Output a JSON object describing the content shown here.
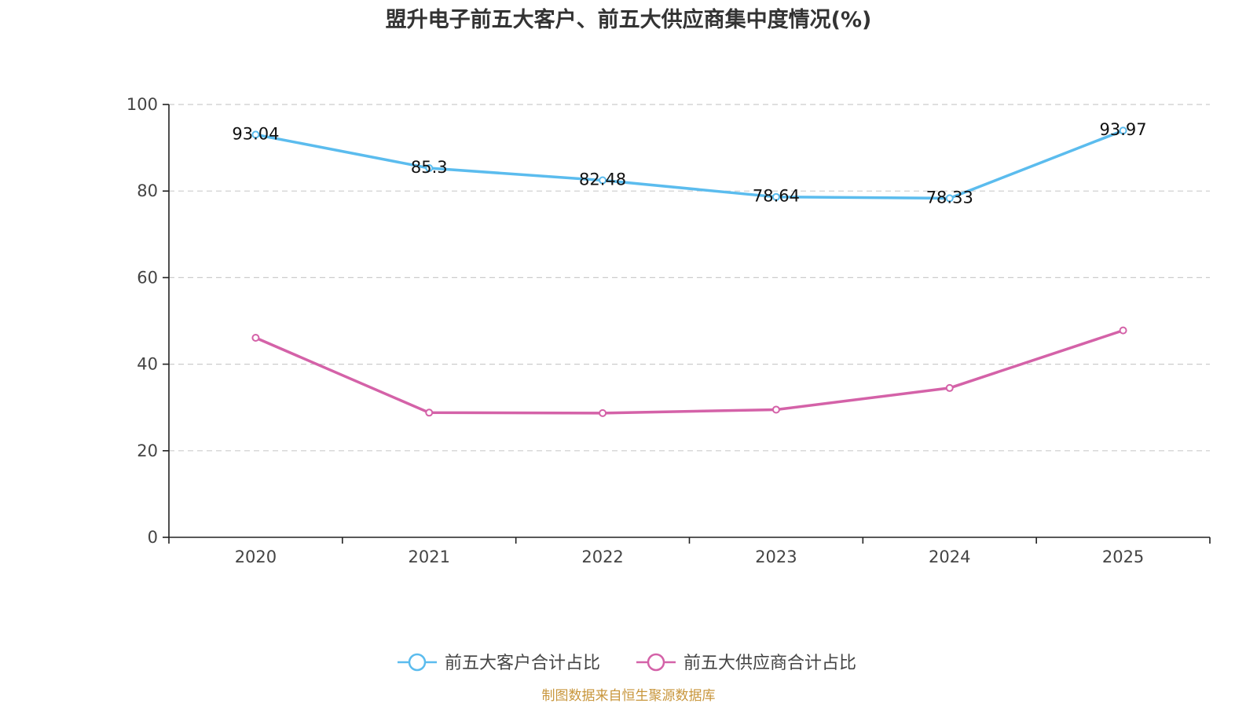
{
  "chart_data": {
    "type": "line",
    "title": "盟升电子前五大客户、前五大供应商集中度情况(%)",
    "categories": [
      "2020",
      "2021",
      "2022",
      "2023",
      "2024",
      "2025"
    ],
    "ylim": [
      0,
      100
    ],
    "yticks": [
      0,
      20,
      40,
      60,
      80,
      100
    ],
    "grid": true,
    "legend_position": "bottom-center",
    "series": [
      {
        "name": "前五大客户合计占比",
        "color": "#5bbcee",
        "values": [
          93.04,
          85.3,
          82.48,
          78.64,
          78.33,
          93.97
        ],
        "labels": [
          "93.04",
          "85.3",
          "82.48",
          "78.64",
          "78.33",
          "93.97"
        ]
      },
      {
        "name": "前五大供应商合计占比",
        "color": "#d462a8",
        "values": [
          46.1,
          28.8,
          28.7,
          29.5,
          34.5,
          47.8
        ]
      }
    ],
    "source": "制图数据来自恒生聚源数据库"
  }
}
